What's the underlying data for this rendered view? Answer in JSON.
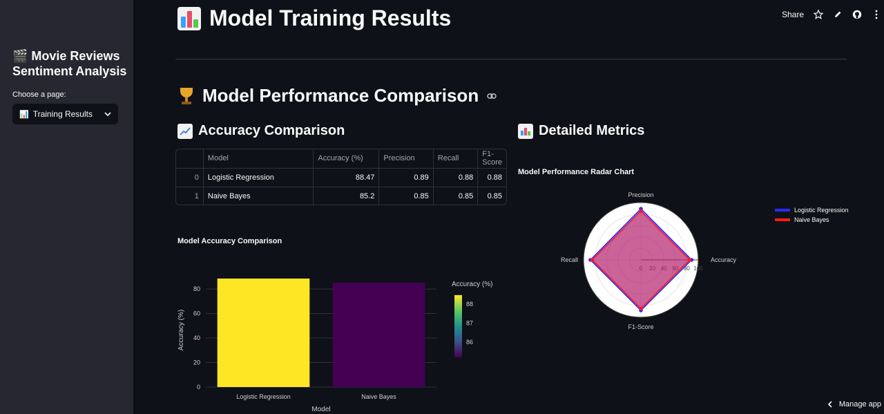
{
  "sidebar": {
    "app_title": "🎬 Movie Reviews Sentiment Analysis",
    "choose_label": "Choose a page:",
    "selected_page": "Training Results"
  },
  "toolbar": {
    "share_label": "Share"
  },
  "page": {
    "title": "Model Training Results",
    "section_title": "Model Performance Comparison",
    "accuracy_subtitle": "Accuracy Comparison",
    "metrics_subtitle": "Detailed Metrics",
    "manage_app": "Manage app"
  },
  "table": {
    "columns": [
      "Model",
      "Accuracy (%)",
      "Precision",
      "Recall",
      "F1-Score"
    ],
    "rows": [
      {
        "index": "0",
        "model": "Logistic Regression",
        "accuracy": "88.47",
        "precision": "0.89",
        "recall": "0.88",
        "f1": "0.88"
      },
      {
        "index": "1",
        "model": "Naive Bayes",
        "accuracy": "85.2",
        "precision": "0.85",
        "recall": "0.85",
        "f1": "0.85"
      }
    ]
  },
  "chart_data": [
    {
      "type": "bar",
      "title": "Model Accuracy Comparison",
      "xlabel": "Model",
      "ylabel": "Accuracy (%)",
      "categories": [
        "Logistic Regression",
        "Naive Bayes"
      ],
      "values": [
        88.47,
        85.2
      ],
      "ylim": [
        0,
        93
      ],
      "yticks": [
        0,
        20,
        40,
        60,
        80
      ],
      "grid": true,
      "colorbar": {
        "title": "Accuracy (%)",
        "ticks": [
          86,
          87,
          88
        ],
        "range": [
          85.2,
          88.47
        ]
      },
      "colors": [
        "#fde725",
        "#440154"
      ]
    },
    {
      "type": "radar",
      "title": "Model Performance Radar Chart",
      "axes": [
        "Accuracy",
        "Precision",
        "Recall",
        "F1-Score"
      ],
      "radial_ticks": [
        "0",
        "20",
        "40",
        "60",
        "80",
        "100"
      ],
      "radial_range": [
        0,
        100
      ],
      "series": [
        {
          "name": "Logistic Regression",
          "values": [
            88.47,
            89,
            88,
            88
          ],
          "color": "#2b2bff"
        },
        {
          "name": "Naive Bayes",
          "values": [
            85.2,
            85,
            85,
            85
          ],
          "color": "#ff1a1a"
        }
      ],
      "legend": "top-right"
    }
  ]
}
